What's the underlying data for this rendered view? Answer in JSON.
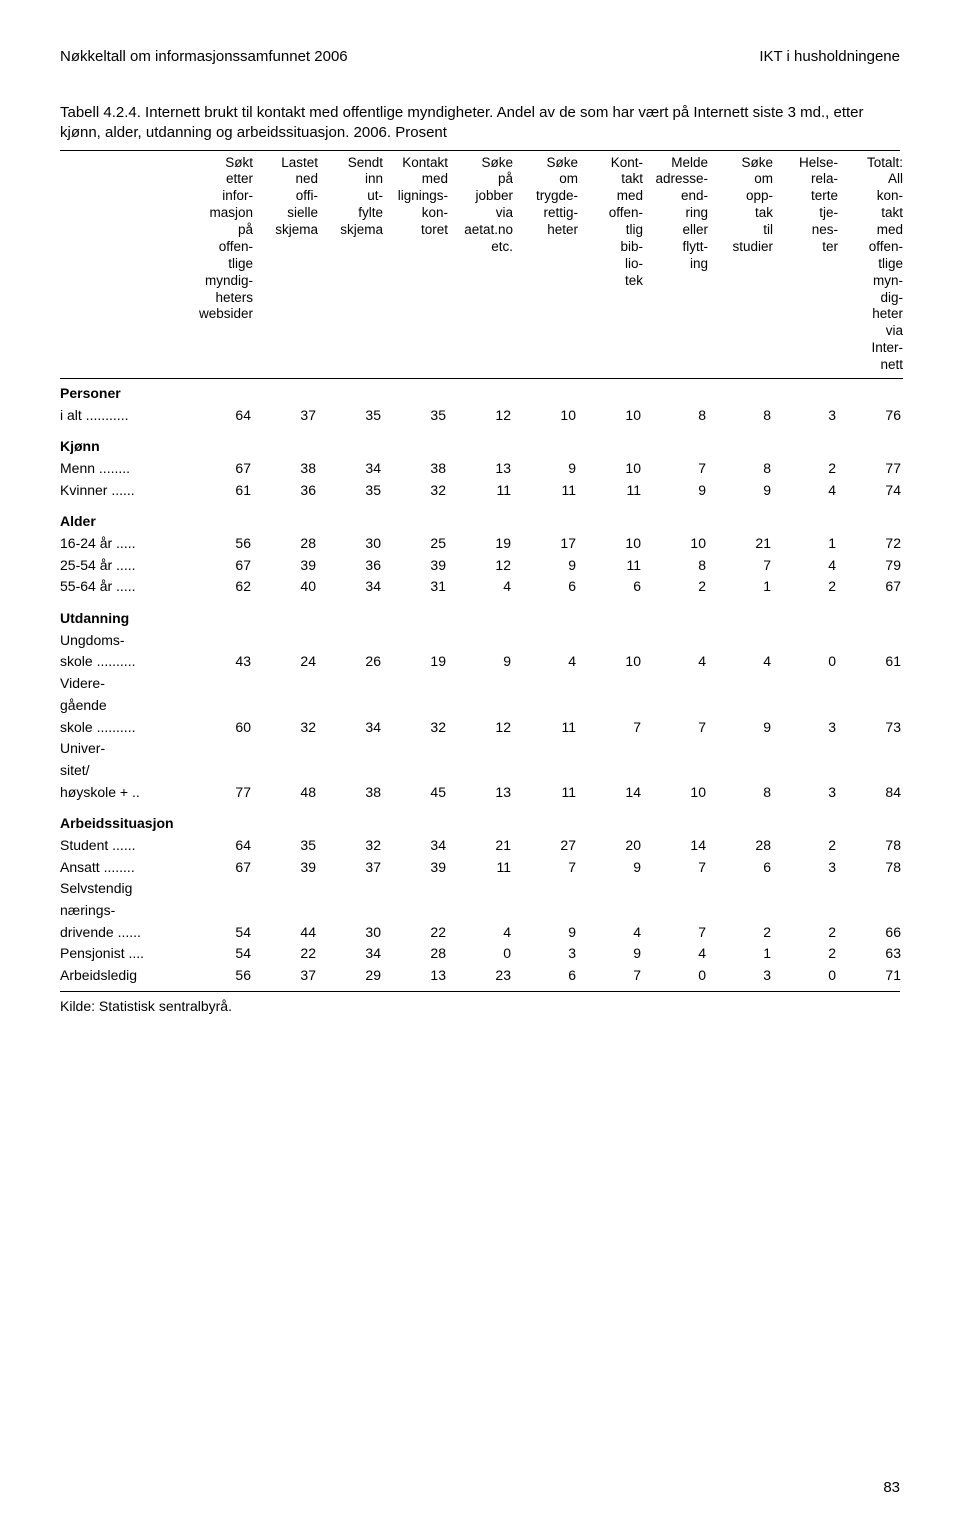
{
  "running_header": {
    "left": "Nøkkeltall om informasjonssamfunnet 2006",
    "right": "IKT i husholdningene"
  },
  "table_title": "Tabell 4.2.4. Internett brukt til kontakt med offentlige myndigheter. Andel av de som har vært på Internett siste 3 md., etter kjønn, alder, utdanning og arbeidssituasjon. 2006. Prosent",
  "columns": [
    {
      "key": "c1",
      "label_lines": [
        "Søkt",
        "etter",
        "infor-",
        "masjon",
        "på",
        "offen-",
        "tlige",
        "myndig-",
        "heters",
        "websider"
      ]
    },
    {
      "key": "c2",
      "label_lines": [
        "Lastet",
        "ned",
        "offi-",
        "sielle",
        "skjema"
      ]
    },
    {
      "key": "c3",
      "label_lines": [
        "Sendt",
        "inn",
        "ut-",
        "fylte",
        "skjema"
      ]
    },
    {
      "key": "c4",
      "label_lines": [
        "Kontakt",
        "med",
        "lignings-",
        "kon-",
        "toret"
      ]
    },
    {
      "key": "c5",
      "label_lines": [
        "Søke",
        "på",
        "jobber",
        "via",
        "aetat.no",
        "etc."
      ]
    },
    {
      "key": "c6",
      "label_lines": [
        "Søke",
        "om",
        "trygde-",
        "rettig-",
        "heter"
      ]
    },
    {
      "key": "c7",
      "label_lines": [
        "Kont-",
        "takt",
        "med",
        "offen-",
        "tlig",
        "bib-",
        "lio-",
        "tek"
      ]
    },
    {
      "key": "c8",
      "label_lines": [
        "Melde",
        "adresse-",
        "end-",
        "ring",
        "eller",
        "flytt-",
        "ing"
      ]
    },
    {
      "key": "c9",
      "label_lines": [
        "Søke",
        "om",
        "opp-",
        "tak",
        "til",
        "studier"
      ]
    },
    {
      "key": "c10",
      "label_lines": [
        "Helse-",
        "rela-",
        "terte",
        "tje-",
        "nes-",
        "ter"
      ]
    },
    {
      "key": "c11",
      "label_lines": [
        "Totalt:",
        "All",
        "kon-",
        "takt",
        "med",
        "offen-",
        "tlige",
        "myn-",
        "dig-",
        "heter",
        "via",
        "Inter-",
        "nett"
      ]
    }
  ],
  "groups": [
    {
      "label": "Personer",
      "rows": [
        {
          "label": "i alt",
          "dots": " ...........",
          "values": [
            64,
            37,
            35,
            35,
            12,
            10,
            10,
            8,
            8,
            3,
            76
          ]
        }
      ]
    },
    {
      "label": "Kjønn",
      "rows": [
        {
          "label": "Menn",
          "dots": " ........",
          "values": [
            67,
            38,
            34,
            38,
            13,
            9,
            10,
            7,
            8,
            2,
            77
          ]
        },
        {
          "label": "Kvinner",
          "dots": " ......",
          "values": [
            61,
            36,
            35,
            32,
            11,
            11,
            11,
            9,
            9,
            4,
            74
          ]
        }
      ]
    },
    {
      "label": "Alder",
      "rows": [
        {
          "label": "16-24 år",
          "dots": " .....",
          "values": [
            56,
            28,
            30,
            25,
            19,
            17,
            10,
            10,
            21,
            1,
            72
          ]
        },
        {
          "label": "25-54 år",
          "dots": " .....",
          "values": [
            67,
            39,
            36,
            39,
            12,
            9,
            11,
            8,
            7,
            4,
            79
          ]
        },
        {
          "label": "55-64 år",
          "dots": " .....",
          "values": [
            62,
            40,
            34,
            31,
            4,
            6,
            6,
            2,
            1,
            2,
            67
          ]
        }
      ]
    },
    {
      "label": "Utdanning",
      "rows": [
        {
          "label": "Ungdoms-",
          "pre_lines": []
        },
        {
          "label": "skole",
          "dots": " ..........",
          "values": [
            43,
            24,
            26,
            19,
            9,
            4,
            10,
            4,
            4,
            0,
            61
          ],
          "pre_lines": [
            "Ungdoms-"
          ]
        },
        {
          "label": "skole",
          "dots": " ..........",
          "values": [
            60,
            32,
            34,
            32,
            12,
            11,
            7,
            7,
            9,
            3,
            73
          ],
          "pre_lines": [
            "Videre-",
            "gående"
          ]
        },
        {
          "label": "høyskole +",
          "dots": " ..",
          "values": [
            77,
            48,
            38,
            45,
            13,
            11,
            14,
            10,
            8,
            3,
            84
          ],
          "pre_lines": [
            "Univer-",
            "sitet/"
          ]
        }
      ]
    },
    {
      "label": "Arbeidssituasjon",
      "rows": [
        {
          "label": "Student",
          "dots": " ......",
          "values": [
            64,
            35,
            32,
            34,
            21,
            27,
            20,
            14,
            28,
            2,
            78
          ]
        },
        {
          "label": "Ansatt",
          "dots": " ........",
          "values": [
            67,
            39,
            37,
            39,
            11,
            7,
            9,
            7,
            6,
            3,
            78
          ]
        },
        {
          "label": "drivende",
          "dots": " ......",
          "values": [
            54,
            44,
            30,
            22,
            4,
            9,
            4,
            7,
            2,
            2,
            66
          ],
          "pre_lines": [
            "Selvstendig",
            "nærings-"
          ]
        },
        {
          "label": "Pensjonist",
          "dots": " ....",
          "values": [
            54,
            22,
            34,
            28,
            0,
            3,
            9,
            4,
            1,
            2,
            63
          ]
        },
        {
          "label": "Arbeidsledig",
          "dots": "",
          "values": [
            56,
            37,
            29,
            13,
            23,
            6,
            7,
            0,
            3,
            0,
            71
          ]
        }
      ]
    }
  ],
  "source": "Kilde: Statistisk sentralbyrå.",
  "page_number": "83"
}
